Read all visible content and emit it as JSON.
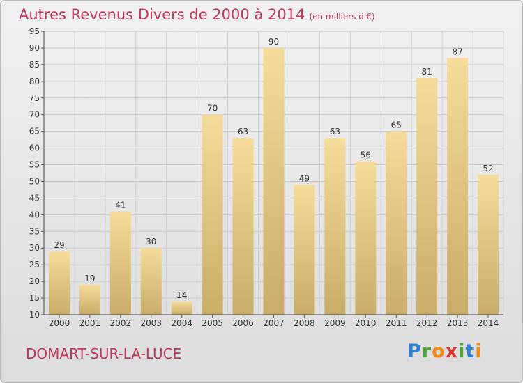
{
  "title": "Autres Revenus Divers de 2000 à 2014",
  "title_unit": "(en milliers d'€)",
  "location": "DOMART-SUR-LA-LUCE",
  "logo": {
    "p": "P",
    "r": "r",
    "o": "o",
    "x": "x",
    "i": "i",
    "t": "t",
    "i2": "i"
  },
  "colors": {
    "title": "#c0395a",
    "bar_top": "#f5dc9a",
    "bar_bottom": "#c9ad68"
  },
  "chart_data": {
    "type": "bar",
    "categories": [
      "2000",
      "2001",
      "2002",
      "2003",
      "2004",
      "2005",
      "2006",
      "2007",
      "2008",
      "2009",
      "2010",
      "2011",
      "2012",
      "2013",
      "2014"
    ],
    "values": [
      29,
      19,
      41,
      30,
      14,
      70,
      63,
      90,
      49,
      63,
      56,
      65,
      81,
      87,
      52
    ],
    "ylim": [
      10,
      95
    ],
    "yticks": [
      10,
      15,
      20,
      25,
      30,
      35,
      40,
      45,
      50,
      55,
      60,
      65,
      70,
      75,
      80,
      85,
      90,
      95
    ],
    "grid": true
  }
}
